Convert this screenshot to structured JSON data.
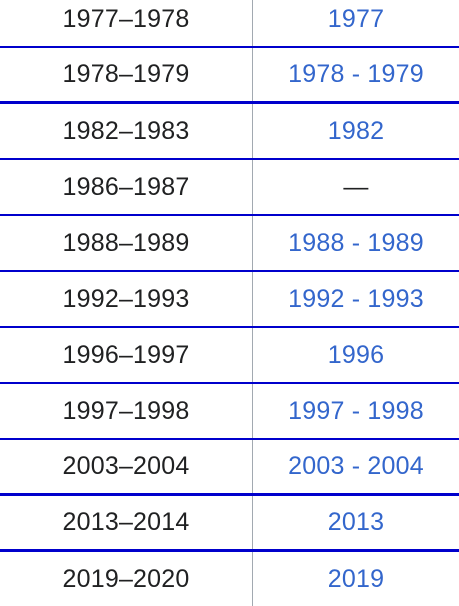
{
  "colors": {
    "row_border": "#0000cc",
    "column_divider": "#a2a9b1",
    "text": "#202122",
    "link": "#3366cc"
  },
  "rows": [
    {
      "season": "1977–1978",
      "link": "1977"
    },
    {
      "season": "1978–1979",
      "link": "1978 - 1979"
    },
    {
      "season": "1982–1983",
      "link": "1982"
    },
    {
      "season": "1986–1987",
      "link": "—"
    },
    {
      "season": "1988–1989",
      "link": "1988 - 1989"
    },
    {
      "season": "1992–1993",
      "link": "1992 - 1993"
    },
    {
      "season": "1996–1997",
      "link": "1996"
    },
    {
      "season": "1997–1998",
      "link": "1997 - 1998"
    },
    {
      "season": "2003–2004",
      "link": "2003 - 2004"
    },
    {
      "season": "2013–2014",
      "link": "2013"
    },
    {
      "season": "2019–2020",
      "link": "2019"
    }
  ]
}
